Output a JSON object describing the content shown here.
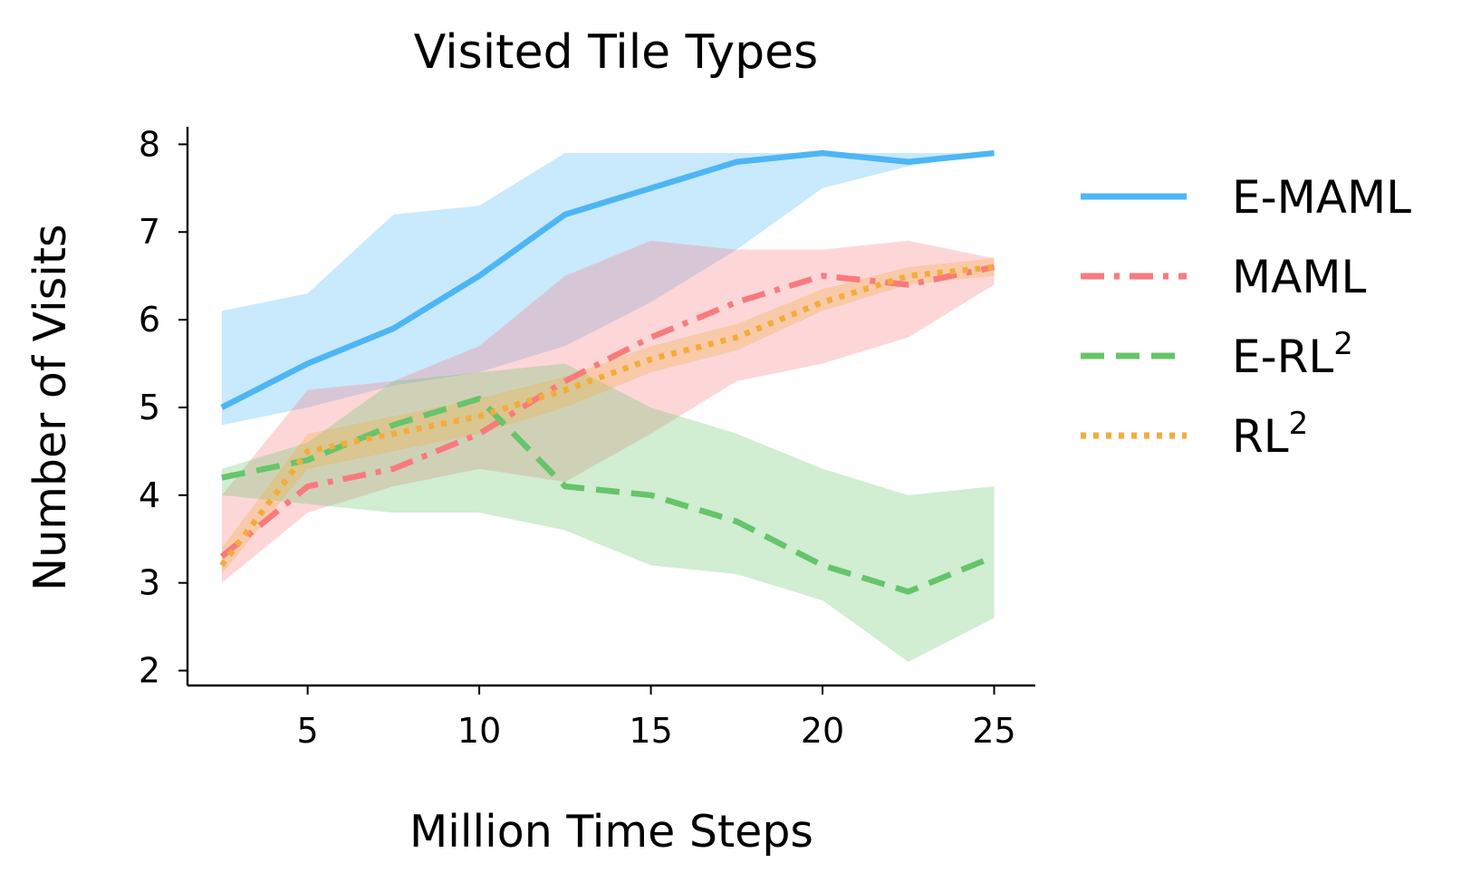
{
  "chart_data": {
    "type": "line",
    "title": "Visited Tile Types",
    "xlabel": "Million Time Steps",
    "ylabel": "Number of Visits",
    "xlim": [
      1.5,
      26.2
    ],
    "ylim": [
      1.83,
      8.2
    ],
    "xticks": [
      5,
      10,
      15,
      20,
      25
    ],
    "yticks": [
      2,
      3,
      4,
      5,
      6,
      7,
      8
    ],
    "grid": false,
    "legend_position": "right",
    "x": [
      2.5,
      5,
      7.5,
      10,
      12.5,
      15,
      17.5,
      20,
      22.5,
      25
    ],
    "series": [
      {
        "name": "E-MAML",
        "name_base": "E-MAML",
        "name_sup": "",
        "color": "#4db6f4",
        "style": "solid",
        "values": [
          5.0,
          5.5,
          5.9,
          6.5,
          7.2,
          7.5,
          7.8,
          7.9,
          7.8,
          7.9
        ],
        "lower": [
          4.8,
          5.0,
          5.25,
          5.4,
          5.7,
          6.2,
          6.8,
          7.5,
          7.75,
          7.9
        ],
        "upper": [
          6.1,
          6.3,
          7.2,
          7.3,
          7.9,
          7.9,
          7.9,
          7.9,
          7.9,
          7.9
        ]
      },
      {
        "name": "MAML",
        "name_base": "MAML",
        "name_sup": "",
        "color": "#f97a7d",
        "style": "dashdot",
        "values": [
          3.3,
          4.1,
          4.3,
          4.7,
          5.3,
          5.8,
          6.2,
          6.5,
          6.4,
          6.6
        ],
        "lower": [
          3.0,
          3.8,
          4.1,
          4.3,
          4.15,
          4.7,
          5.3,
          5.5,
          5.8,
          6.4
        ],
        "upper": [
          4.0,
          5.2,
          5.3,
          5.7,
          6.5,
          6.9,
          6.8,
          6.8,
          6.9,
          6.7
        ]
      },
      {
        "name": "E-RL2",
        "name_base": "E-RL",
        "name_sup": "2",
        "color": "#66c46a",
        "style": "dashed",
        "values": [
          4.2,
          4.4,
          4.8,
          5.1,
          4.1,
          4.0,
          3.7,
          3.2,
          2.9,
          3.3
        ],
        "lower": [
          4.0,
          3.9,
          3.8,
          3.8,
          3.6,
          3.2,
          3.1,
          2.8,
          2.1,
          2.6
        ],
        "upper": [
          4.3,
          4.6,
          5.3,
          5.4,
          5.5,
          5.0,
          4.7,
          4.3,
          4.0,
          4.1
        ]
      },
      {
        "name": "RL2",
        "name_base": "RL",
        "name_sup": "2",
        "color": "#f3ac3c",
        "style": "dotted",
        "values": [
          3.2,
          4.5,
          4.7,
          4.9,
          5.2,
          5.55,
          5.8,
          6.2,
          6.5,
          6.6
        ],
        "lower": [
          3.1,
          4.3,
          4.5,
          4.7,
          5.0,
          5.4,
          5.65,
          6.1,
          6.4,
          6.5
        ],
        "upper": [
          3.4,
          4.7,
          4.9,
          5.1,
          5.35,
          5.7,
          5.95,
          6.35,
          6.6,
          6.7
        ]
      }
    ]
  }
}
